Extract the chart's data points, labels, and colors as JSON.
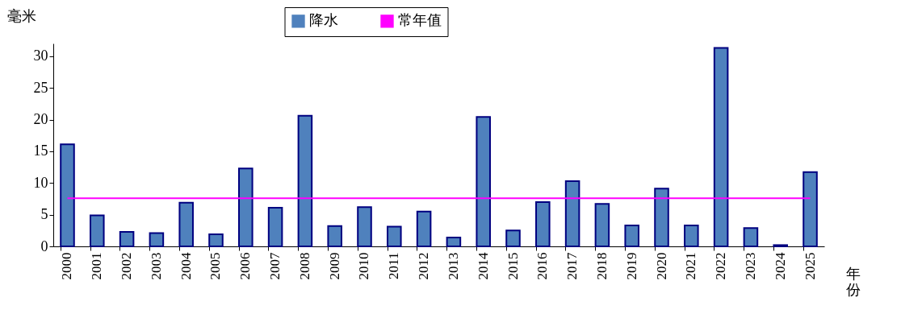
{
  "chart_data": {
    "type": "bar",
    "ylabel": "毫米",
    "xlabel": "年份",
    "categories": [
      "2000",
      "2001",
      "2002",
      "2003",
      "2004",
      "2005",
      "2006",
      "2007",
      "2008",
      "2009",
      "2010",
      "2011",
      "2012",
      "2013",
      "2014",
      "2015",
      "2016",
      "2017",
      "2018",
      "2019",
      "2020",
      "2021",
      "2022",
      "2023",
      "2024",
      "2025"
    ],
    "series": [
      {
        "name": "降水",
        "color": "#4f81bd",
        "values": [
          16.1,
          4.9,
          2.3,
          2.1,
          6.9,
          1.9,
          12.3,
          6.1,
          20.6,
          3.2,
          6.2,
          3.1,
          5.5,
          1.4,
          20.4,
          2.5,
          7.0,
          10.3,
          6.7,
          3.3,
          9.1,
          3.3,
          31.3,
          2.9,
          0.2,
          11.7
        ]
      },
      {
        "name": "常年值",
        "type": "line",
        "color": "#ff00ff",
        "values": [
          7.6,
          7.6,
          7.6,
          7.6,
          7.6,
          7.6,
          7.6,
          7.6,
          7.6,
          7.6,
          7.6,
          7.6,
          7.6,
          7.6,
          7.6,
          7.6,
          7.6,
          7.6,
          7.6,
          7.6,
          7.6,
          7.6,
          7.6,
          7.6,
          7.6,
          7.6
        ]
      }
    ],
    "ylim": [
      0,
      32
    ],
    "yticks": [
      0,
      5,
      10,
      15,
      20,
      25,
      30
    ],
    "legend": "top"
  }
}
